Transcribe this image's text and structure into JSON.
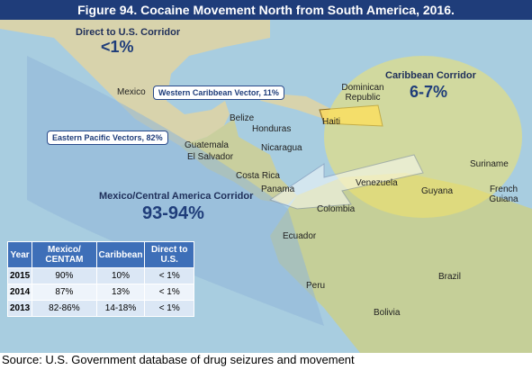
{
  "header": {
    "title": "Figure 94. Cocaine Movement North from South America, 2016."
  },
  "corridors": [
    {
      "name": "Direct to U.S. Corridor",
      "share": "<1%"
    },
    {
      "name": "Caribbean Corridor",
      "share": "6-7%"
    },
    {
      "name": "Mexico/Central America Corridor",
      "share": "93-94%"
    }
  ],
  "vectors": [
    "Western Caribbean Vector, 11%",
    "Eastern Pacific Vectors, 82%"
  ],
  "places": [
    "Mexico",
    "Dominican Republic",
    "Haiti",
    "Belize",
    "Honduras",
    "Guatemala",
    "El Salvador",
    "Nicaragua",
    "Costa Rica",
    "Panama",
    "Venezuela",
    "Suriname",
    "Guyana",
    "French Guiana",
    "Colombia",
    "Ecuador",
    "Peru",
    "Brazil",
    "Bolivia"
  ],
  "table": {
    "columns": [
      "Year",
      "Mexico/ CENTAM",
      "Caribbean",
      "Direct to U.S."
    ],
    "rows": [
      [
        "2015",
        "90%",
        "10%",
        "< 1%"
      ],
      [
        "2014",
        "87%",
        "13%",
        "< 1%"
      ],
      [
        "2013",
        "82-86%",
        "14-18%",
        "< 1%"
      ]
    ]
  },
  "source": "Source: U.S. Government database of drug seizures and movement"
}
